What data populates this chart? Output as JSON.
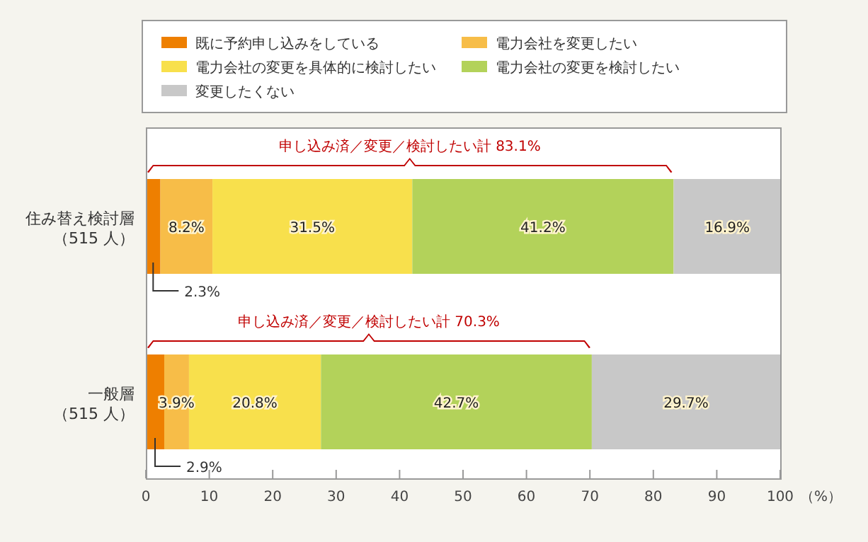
{
  "chart_data": {
    "type": "bar",
    "orientation": "horizontal",
    "stacked": true,
    "categories": [
      "住み替え検討層（515 人）",
      "一般層（515 人）"
    ],
    "series": [
      {
        "name": "既に予約申し込みをしている",
        "color": "#ee7f00",
        "values": [
          2.3,
          2.9
        ],
        "value_labels": [
          "2.3%",
          "2.9%"
        ]
      },
      {
        "name": "電力会社を変更したい",
        "color": "#f7bd48",
        "values": [
          8.2,
          3.9
        ],
        "value_labels": [
          "8.2%",
          "3.9%"
        ]
      },
      {
        "name": "電力会社の変更を具体的に検討したい",
        "color": "#f8e04c",
        "values": [
          31.5,
          20.8
        ],
        "value_labels": [
          "31.5%",
          "20.8%"
        ]
      },
      {
        "name": "電力会社の変更を検討したい",
        "color": "#b3d25a",
        "values": [
          41.2,
          42.7
        ],
        "value_labels": [
          "41.2%",
          "42.7%"
        ]
      },
      {
        "name": "変更したくない",
        "color": "#c8c8c8",
        "values": [
          16.9,
          29.7
        ],
        "value_labels": [
          "16.9%",
          "29.7%"
        ]
      }
    ],
    "xlim": [
      0,
      100
    ],
    "xticks": [
      0,
      10,
      20,
      30,
      40,
      50,
      60,
      70,
      80,
      90,
      100
    ],
    "xlabel": "（%）",
    "grid": false,
    "legend": "top",
    "annotations": [
      "申し込み済／変更／検討したい計 83.1%",
      "申し込み済／変更／検討したい計 70.3%"
    ]
  }
}
